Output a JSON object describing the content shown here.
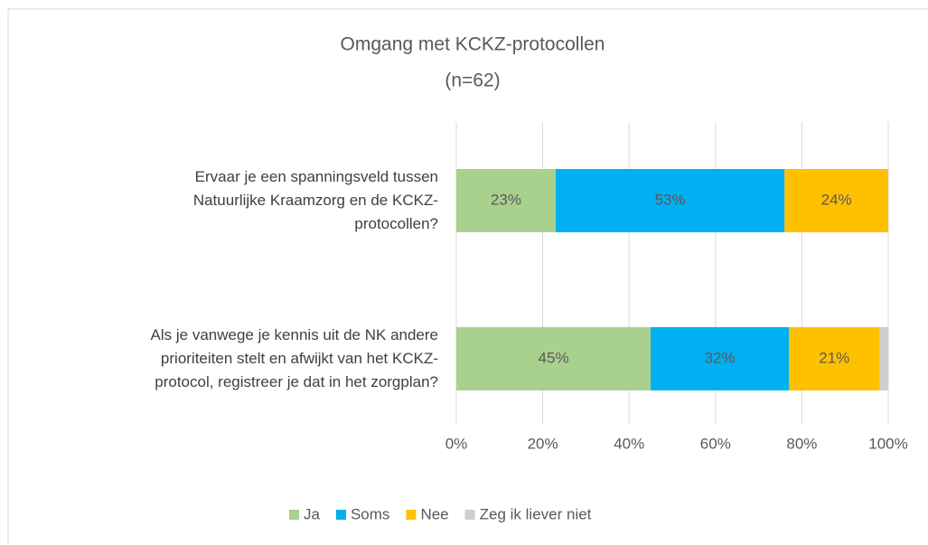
{
  "chart_data": {
    "type": "stacked-barh",
    "title": "Omgang met KCKZ-protocollen",
    "subtitle": "(n=62)",
    "categories": [
      "Ervaar je een spanningsveld tussen Natuurlijke Kraamzorg en de KCKZ-protocollen?",
      "Als je vanwege je kennis uit de NK andere prioriteiten stelt en afwijkt van het KCKZ-protocol, registreer je dat in het zorgplan?"
    ],
    "series": [
      {
        "name": "Ja",
        "color": "#a9d18e",
        "values": [
          23,
          45
        ],
        "value_labels": [
          "23%",
          "45%"
        ]
      },
      {
        "name": "Soms",
        "color": "#00b0f0",
        "values": [
          53,
          32
        ],
        "value_labels": [
          "53%",
          "32%"
        ]
      },
      {
        "name": "Nee",
        "color": "#ffc000",
        "values": [
          24,
          21
        ],
        "value_labels": [
          "24%",
          "21%"
        ]
      },
      {
        "name": "Zeg ik liever niet",
        "color": "#d0cece",
        "values": [
          0,
          2
        ]
      }
    ],
    "xlim": [
      0,
      100
    ],
    "xticks": [
      {
        "value": 0,
        "label": "0%"
      },
      {
        "value": 20,
        "label": "20%"
      },
      {
        "value": 40,
        "label": "40%"
      },
      {
        "value": 60,
        "label": "60%"
      },
      {
        "value": 80,
        "label": "80%"
      },
      {
        "value": 100,
        "label": "100%"
      }
    ],
    "grid": true,
    "legend": "bottom"
  }
}
